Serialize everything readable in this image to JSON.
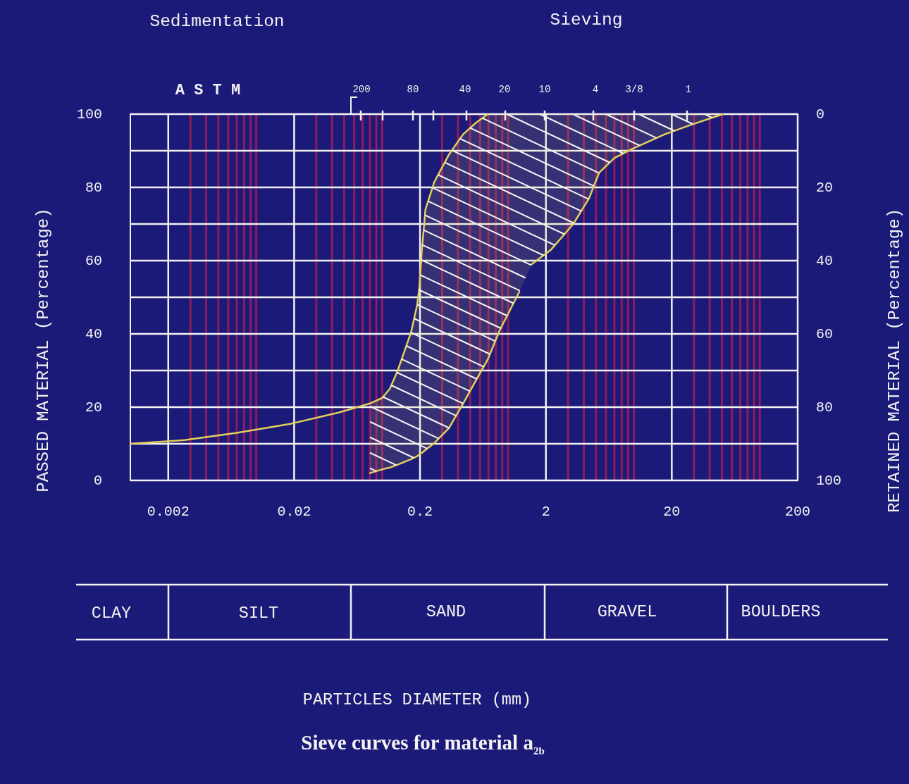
{
  "chart_data": {
    "type": "line",
    "title": "Sieve curves for material a$_{2b}$",
    "ylabel": "PASSED MATERIAL (Percentage)",
    "y2label": "RETAINED MATERIAL (Percentage)",
    "annotations": [
      "Sedimentation",
      "Sieving",
      "A S T M",
      "200",
      "80",
      "40",
      "20",
      "10",
      "4",
      "3/8",
      "1",
      "CLAY",
      "SILT",
      "SAND",
      "GRAVEL",
      "BOULDERS",
      "PARTICLES DIAMETER (mm)"
    ],
    "log": "x",
    "grid": true,
    "xlim": [
      0.001,
      200
    ],
    "xticks": [
      0.002,
      {
        "value": 0.003,
        "label": null
      },
      {
        "value": 0.004,
        "label": null
      },
      {
        "value": 0.005,
        "label": null
      },
      {
        "value": 0.006,
        "label": null
      },
      {
        "value": 0.007,
        "label": null
      },
      {
        "value": 0.008,
        "label": null
      },
      {
        "value": 0.009,
        "label": null
      },
      {
        "value": 0.01,
        "label": null
      },
      0.02,
      {
        "value": 0.03,
        "label": null
      },
      {
        "value": 0.04,
        "label": null
      },
      {
        "value": 0.05,
        "label": null
      },
      {
        "value": 0.06,
        "label": null
      },
      {
        "value": 0.07,
        "label": null
      },
      {
        "value": 0.08,
        "label": null
      },
      {
        "value": 0.09,
        "label": null
      },
      {
        "value": 0.1,
        "label": null
      },
      0.2,
      {
        "value": 0.3,
        "label": null
      },
      {
        "value": 0.4,
        "label": null
      },
      {
        "value": 0.5,
        "label": null
      },
      {
        "value": 0.6,
        "label": null
      },
      {
        "value": 0.7,
        "label": null
      },
      {
        "value": 0.8,
        "label": null
      },
      {
        "value": 0.9,
        "label": null
      },
      {
        "value": 1,
        "label": null
      },
      2,
      {
        "value": 3,
        "label": null
      },
      {
        "value": 4,
        "label": null
      },
      {
        "value": 5,
        "label": null
      },
      {
        "value": 6,
        "label": null
      },
      {
        "value": 7,
        "label": null
      },
      {
        "value": 8,
        "label": null
      },
      {
        "value": 9,
        "label": null
      },
      {
        "value": 10,
        "label": null
      },
      20,
      {
        "value": 30,
        "label": null
      },
      {
        "value": 40,
        "label": null
      },
      {
        "value": 50,
        "label": null
      },
      {
        "value": 60,
        "label": null
      },
      {
        "value": 70,
        "label": null
      },
      {
        "value": 80,
        "label": null
      },
      {
        "value": 90,
        "label": null
      },
      {
        "value": 100,
        "label": null
      },
      200
    ],
    "ylim": [
      0,
      100
    ],
    "yticks": [
      0,
      {
        "value": 10,
        "label": null
      },
      20,
      {
        "value": 30,
        "label": null
      },
      40,
      {
        "value": 50,
        "label": null
      },
      60,
      {
        "value": 70,
        "label": null
      },
      80,
      {
        "value": 90,
        "label": null
      },
      100
    ],
    "y2lim": [
      100,
      0
    ],
    "y2ticks": [
      0,
      20,
      40,
      60,
      80,
      100
    ],
    "series": [
      {
        "color": "#e3cf5a",
        "x": [
          0.001,
          0.0027,
          0.007,
          0.019,
          0.045,
          0.08,
          0.1,
          0.115,
          0.133,
          0.17,
          0.19,
          0.198,
          0.207,
          0.221,
          0.26,
          0.34,
          0.44,
          0.55,
          0.69,
          0.86,
          1.23,
          1.54,
          2.2,
          3.3,
          4.4,
          5.3,
          7,
          9.7,
          17.6,
          28,
          51
        ],
        "values": [
          10,
          11,
          13,
          15.5,
          18.5,
          21,
          22.5,
          25,
          30,
          40.5,
          48,
          53,
          63,
          74,
          81.5,
          89,
          94.5,
          97.5,
          100,
          null,
          null,
          null,
          null,
          null,
          null,
          null,
          null,
          null,
          null,
          null,
          null
        ],
        "upper": [
          null,
          null,
          null,
          null,
          null,
          21,
          22.5,
          25,
          30,
          40.5,
          48,
          53,
          63,
          74,
          81.5,
          89,
          94.5,
          97.5,
          100,
          100,
          100,
          100,
          100,
          100,
          100,
          100,
          100,
          100,
          100,
          100,
          100
        ],
        "lower": [
          null,
          null,
          null,
          null,
          null,
          2,
          3,
          3.5,
          4.3,
          5.8,
          6.6,
          7.1,
          7.5,
          8.3,
          10.2,
          14.3,
          21,
          27,
          33,
          41,
          51.5,
          59,
          63,
          70,
          77,
          84,
          88,
          90.5,
          94.5,
          97,
          100
        ]
      },
      {
        "color": "#e3cf5a",
        "x": [
          0.08,
          0.1,
          0.115,
          0.133,
          0.17,
          0.19,
          0.198,
          0.207,
          0.221,
          0.26,
          0.34,
          0.44,
          0.55,
          0.69,
          0.86,
          1.23,
          1.38,
          1.54,
          2.2,
          3.3,
          4.4,
          5.3,
          7,
          9.7,
          17.6,
          28,
          51
        ],
        "values": [
          2,
          3,
          3.5,
          4.3,
          5.8,
          6.6,
          7.1,
          7.5,
          8.3,
          10.2,
          14.3,
          21,
          27,
          33,
          41,
          51.5,
          null,
          59,
          63,
          70,
          77,
          84,
          88,
          90.5,
          94.5,
          97,
          100
        ]
      }
    ]
  }
}
